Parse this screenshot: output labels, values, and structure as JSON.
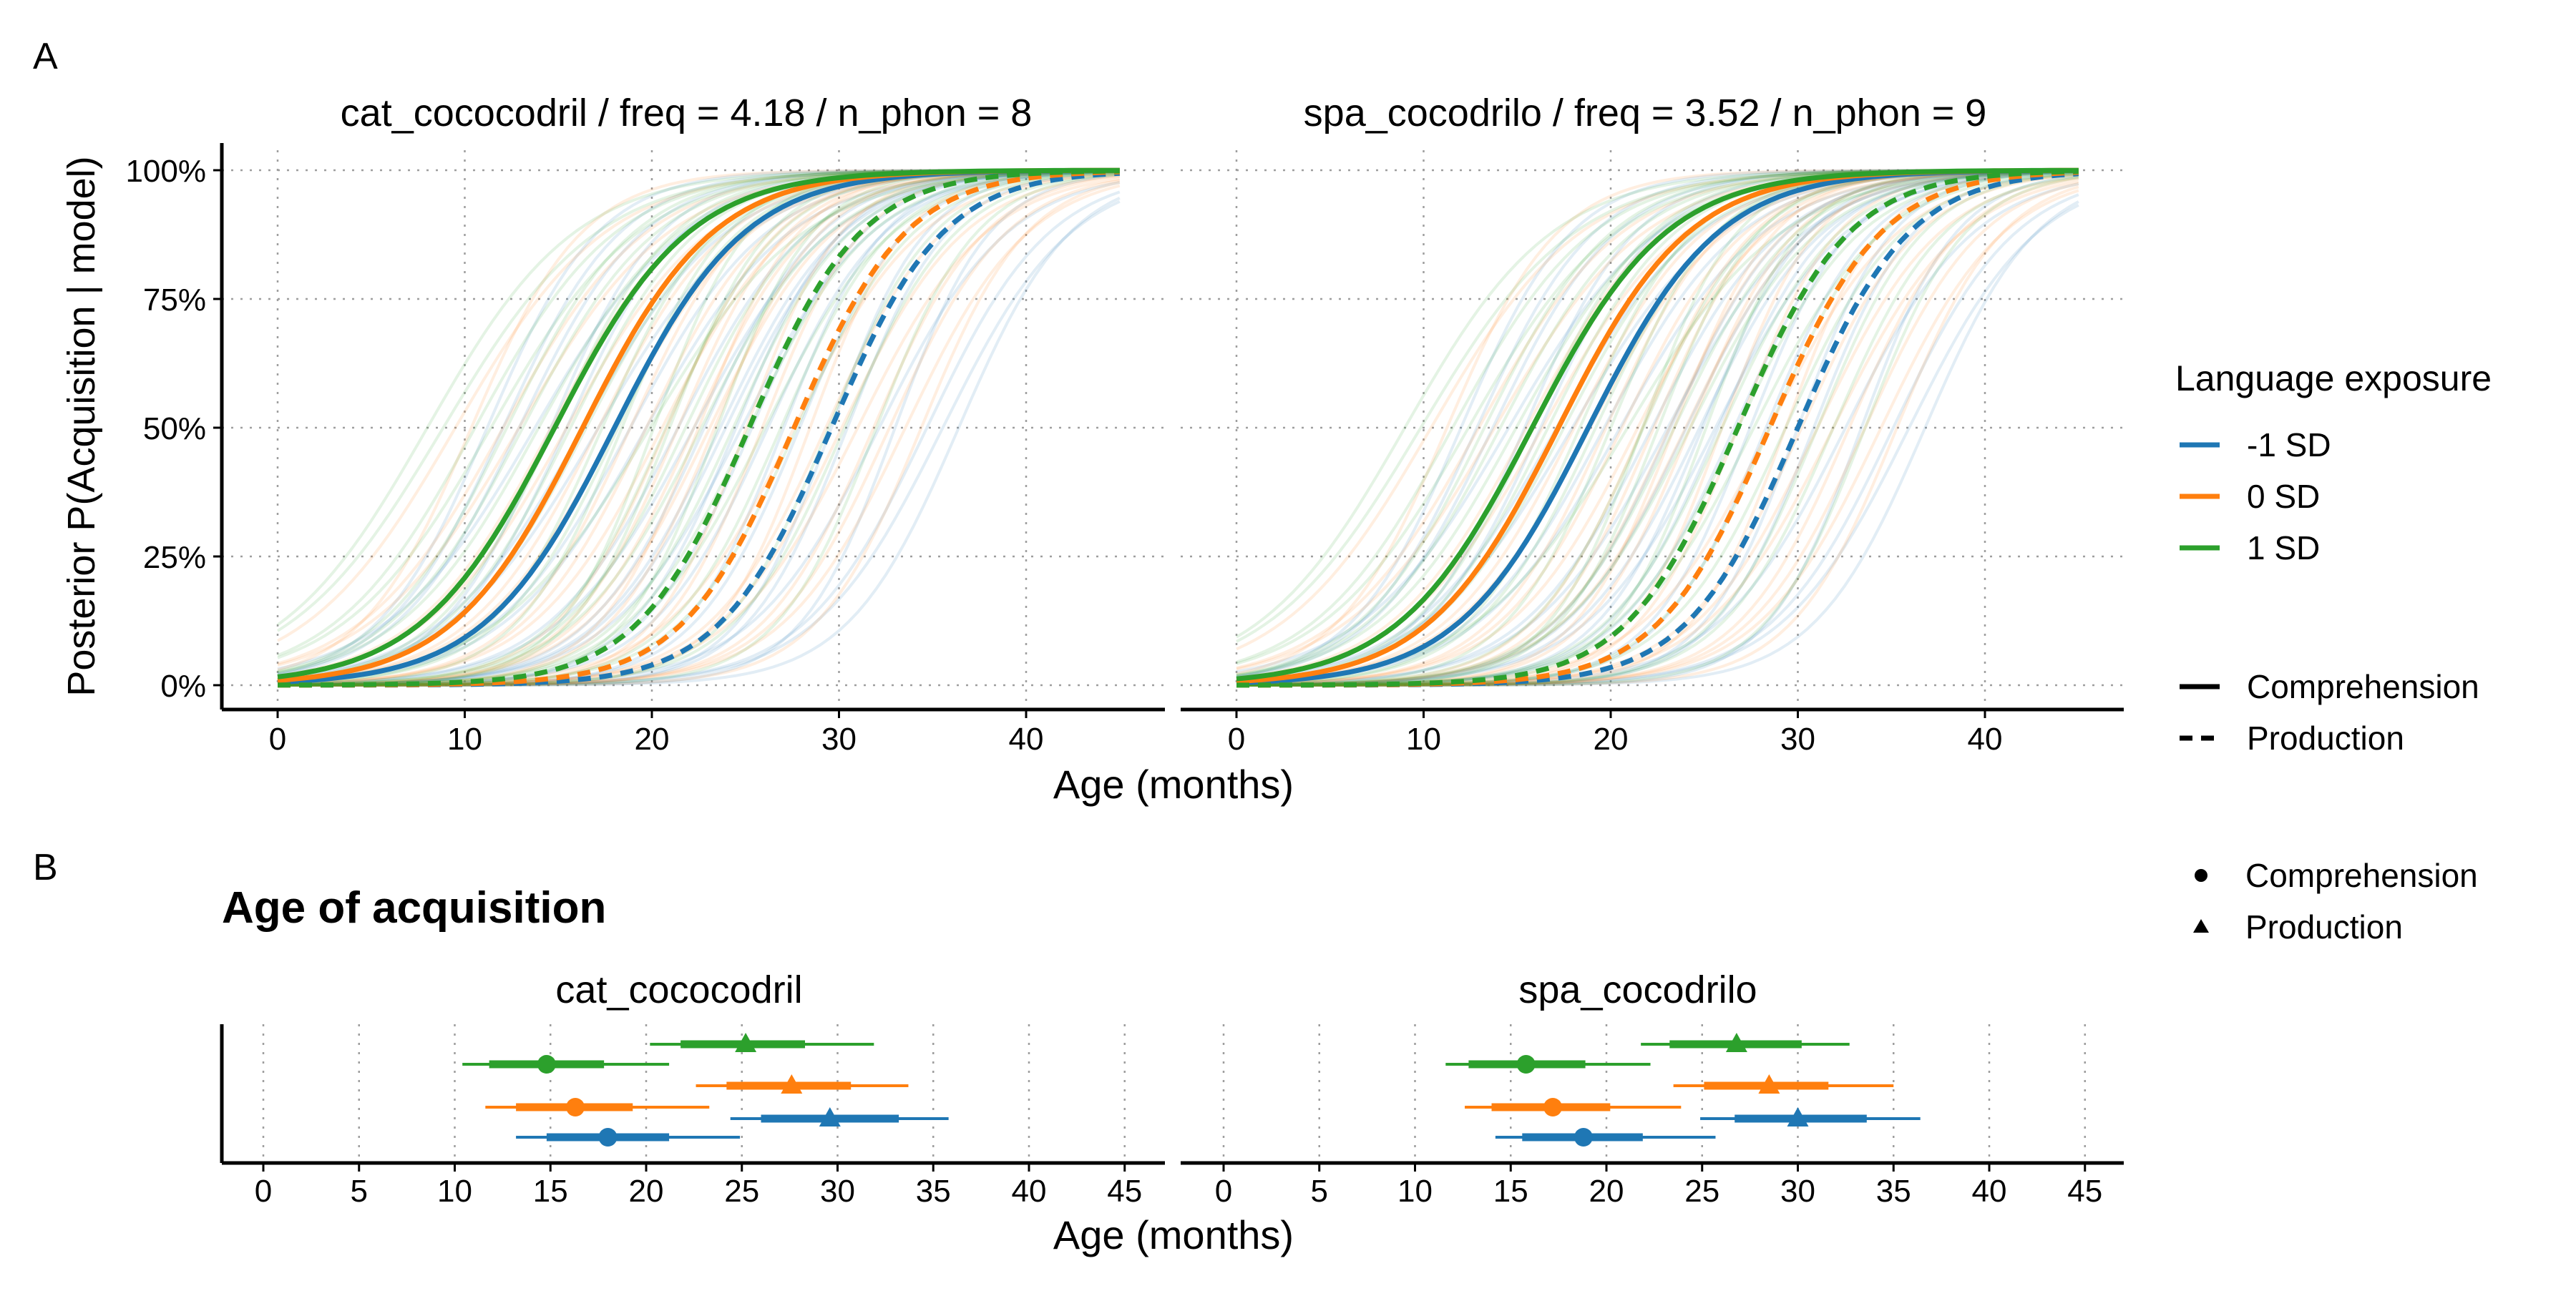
{
  "panel_labels": {
    "a": "A",
    "b": "B"
  },
  "legend": {
    "title": "Language exposure",
    "exposure": [
      {
        "label": "-1 SD",
        "color": "#1f77b4"
      },
      {
        "label": "0 SD",
        "color": "#ff7f0e"
      },
      {
        "label": "1 SD",
        "color": "#2ca02c"
      }
    ],
    "linetypes": [
      {
        "label": "Comprehension",
        "style": "solid"
      },
      {
        "label": "Production",
        "style": "dashed"
      }
    ],
    "shapes": [
      {
        "label": "Comprehension",
        "shape": "circle"
      },
      {
        "label": "Production",
        "shape": "triangle"
      }
    ]
  },
  "chart_data": [
    {
      "type": "line",
      "panel": "A",
      "ylabel": "Posterior P(Acquisition | model)",
      "xlabel": "Age (months)",
      "x_ticks": [
        0,
        10,
        20,
        30,
        40
      ],
      "y_ticks": [
        "0%",
        "25%",
        "50%",
        "75%",
        "100%"
      ],
      "xlim": [
        0,
        45
      ],
      "ylim": [
        0,
        1
      ],
      "grid": true,
      "facets": [
        {
          "title": "cat_cococodril / freq = 4.18 / n_phon = 8",
          "series": [
            {
              "name": "-1 SD",
              "type": "Comprehension",
              "midpoint": 18.0,
              "scale": 3.5,
              "color": "#1f77b4"
            },
            {
              "name": "0 SD",
              "type": "Comprehension",
              "midpoint": 16.3,
              "scale": 3.5,
              "color": "#ff7f0e"
            },
            {
              "name": "1 SD",
              "type": "Comprehension",
              "midpoint": 14.8,
              "scale": 3.6,
              "color": "#2ca02c"
            },
            {
              "name": "-1 SD",
              "type": "Production",
              "midpoint": 29.6,
              "scale": 3.0,
              "color": "#1f77b4"
            },
            {
              "name": "0 SD",
              "type": "Production",
              "midpoint": 27.6,
              "scale": 3.0,
              "color": "#ff7f0e"
            },
            {
              "name": "1 SD",
              "type": "Production",
              "midpoint": 25.2,
              "scale": 3.0,
              "color": "#2ca02c"
            }
          ]
        },
        {
          "title": "spa_cocodrilo / freq = 3.52 / n_phon = 9",
          "series": [
            {
              "name": "-1 SD",
              "type": "Comprehension",
              "midpoint": 18.8,
              "scale": 3.5,
              "color": "#1f77b4"
            },
            {
              "name": "0 SD",
              "type": "Comprehension",
              "midpoint": 17.2,
              "scale": 3.5,
              "color": "#ff7f0e"
            },
            {
              "name": "1 SD",
              "type": "Comprehension",
              "midpoint": 15.8,
              "scale": 3.6,
              "color": "#2ca02c"
            },
            {
              "name": "-1 SD",
              "type": "Production",
              "midpoint": 30.0,
              "scale": 3.0,
              "color": "#1f77b4"
            },
            {
              "name": "0 SD",
              "type": "Production",
              "midpoint": 28.5,
              "scale": 3.0,
              "color": "#ff7f0e"
            },
            {
              "name": "1 SD",
              "type": "Production",
              "midpoint": 26.8,
              "scale": 3.0,
              "color": "#2ca02c"
            }
          ]
        }
      ]
    },
    {
      "type": "scatter",
      "panel": "B",
      "title": "Age of acquisition",
      "xlabel": "Age (months)",
      "x_ticks": [
        0,
        5,
        10,
        15,
        20,
        25,
        30,
        35,
        40,
        45
      ],
      "xlim": [
        0,
        45
      ],
      "grid": true,
      "facets": [
        {
          "title": "cat_cococodril",
          "points": [
            {
              "group": "1 SD",
              "type": "Production",
              "estimate": 25.2,
              "inner": [
                21.8,
                28.3
              ],
              "outer": [
                20.2,
                31.9
              ],
              "color": "#2ca02c"
            },
            {
              "group": "1 SD",
              "type": "Comprehension",
              "estimate": 14.8,
              "inner": [
                11.8,
                17.8
              ],
              "outer": [
                10.4,
                21.2
              ],
              "color": "#2ca02c"
            },
            {
              "group": "0 SD",
              "type": "Production",
              "estimate": 27.6,
              "inner": [
                24.2,
                30.7
              ],
              "outer": [
                22.6,
                33.7
              ],
              "color": "#ff7f0e"
            },
            {
              "group": "0 SD",
              "type": "Comprehension",
              "estimate": 16.3,
              "inner": [
                13.2,
                19.3
              ],
              "outer": [
                11.6,
                23.3
              ],
              "color": "#ff7f0e"
            },
            {
              "group": "-1 SD",
              "type": "Production",
              "estimate": 29.6,
              "inner": [
                26.0,
                33.2
              ],
              "outer": [
                24.4,
                35.8
              ],
              "color": "#1f77b4"
            },
            {
              "group": "-1 SD",
              "type": "Comprehension",
              "estimate": 18.0,
              "inner": [
                14.8,
                21.2
              ],
              "outer": [
                13.2,
                24.9
              ],
              "color": "#1f77b4"
            }
          ]
        },
        {
          "title": "spa_cocodrilo",
          "points": [
            {
              "group": "1 SD",
              "type": "Production",
              "estimate": 26.8,
              "inner": [
                23.3,
                30.2
              ],
              "outer": [
                21.8,
                32.7
              ],
              "color": "#2ca02c"
            },
            {
              "group": "1 SD",
              "type": "Comprehension",
              "estimate": 15.8,
              "inner": [
                12.8,
                18.9
              ],
              "outer": [
                11.6,
                22.3
              ],
              "color": "#2ca02c"
            },
            {
              "group": "0 SD",
              "type": "Production",
              "estimate": 28.5,
              "inner": [
                25.1,
                31.6
              ],
              "outer": [
                23.5,
                35.0
              ],
              "color": "#ff7f0e"
            },
            {
              "group": "0 SD",
              "type": "Comprehension",
              "estimate": 17.2,
              "inner": [
                14.0,
                20.2
              ],
              "outer": [
                12.6,
                23.9
              ],
              "color": "#ff7f0e"
            },
            {
              "group": "-1 SD",
              "type": "Production",
              "estimate": 30.0,
              "inner": [
                26.7,
                33.6
              ],
              "outer": [
                24.9,
                36.4
              ],
              "color": "#1f77b4"
            },
            {
              "group": "-1 SD",
              "type": "Comprehension",
              "estimate": 18.8,
              "inner": [
                15.6,
                21.9
              ],
              "outer": [
                14.2,
                25.7
              ],
              "color": "#1f77b4"
            }
          ]
        }
      ]
    }
  ]
}
